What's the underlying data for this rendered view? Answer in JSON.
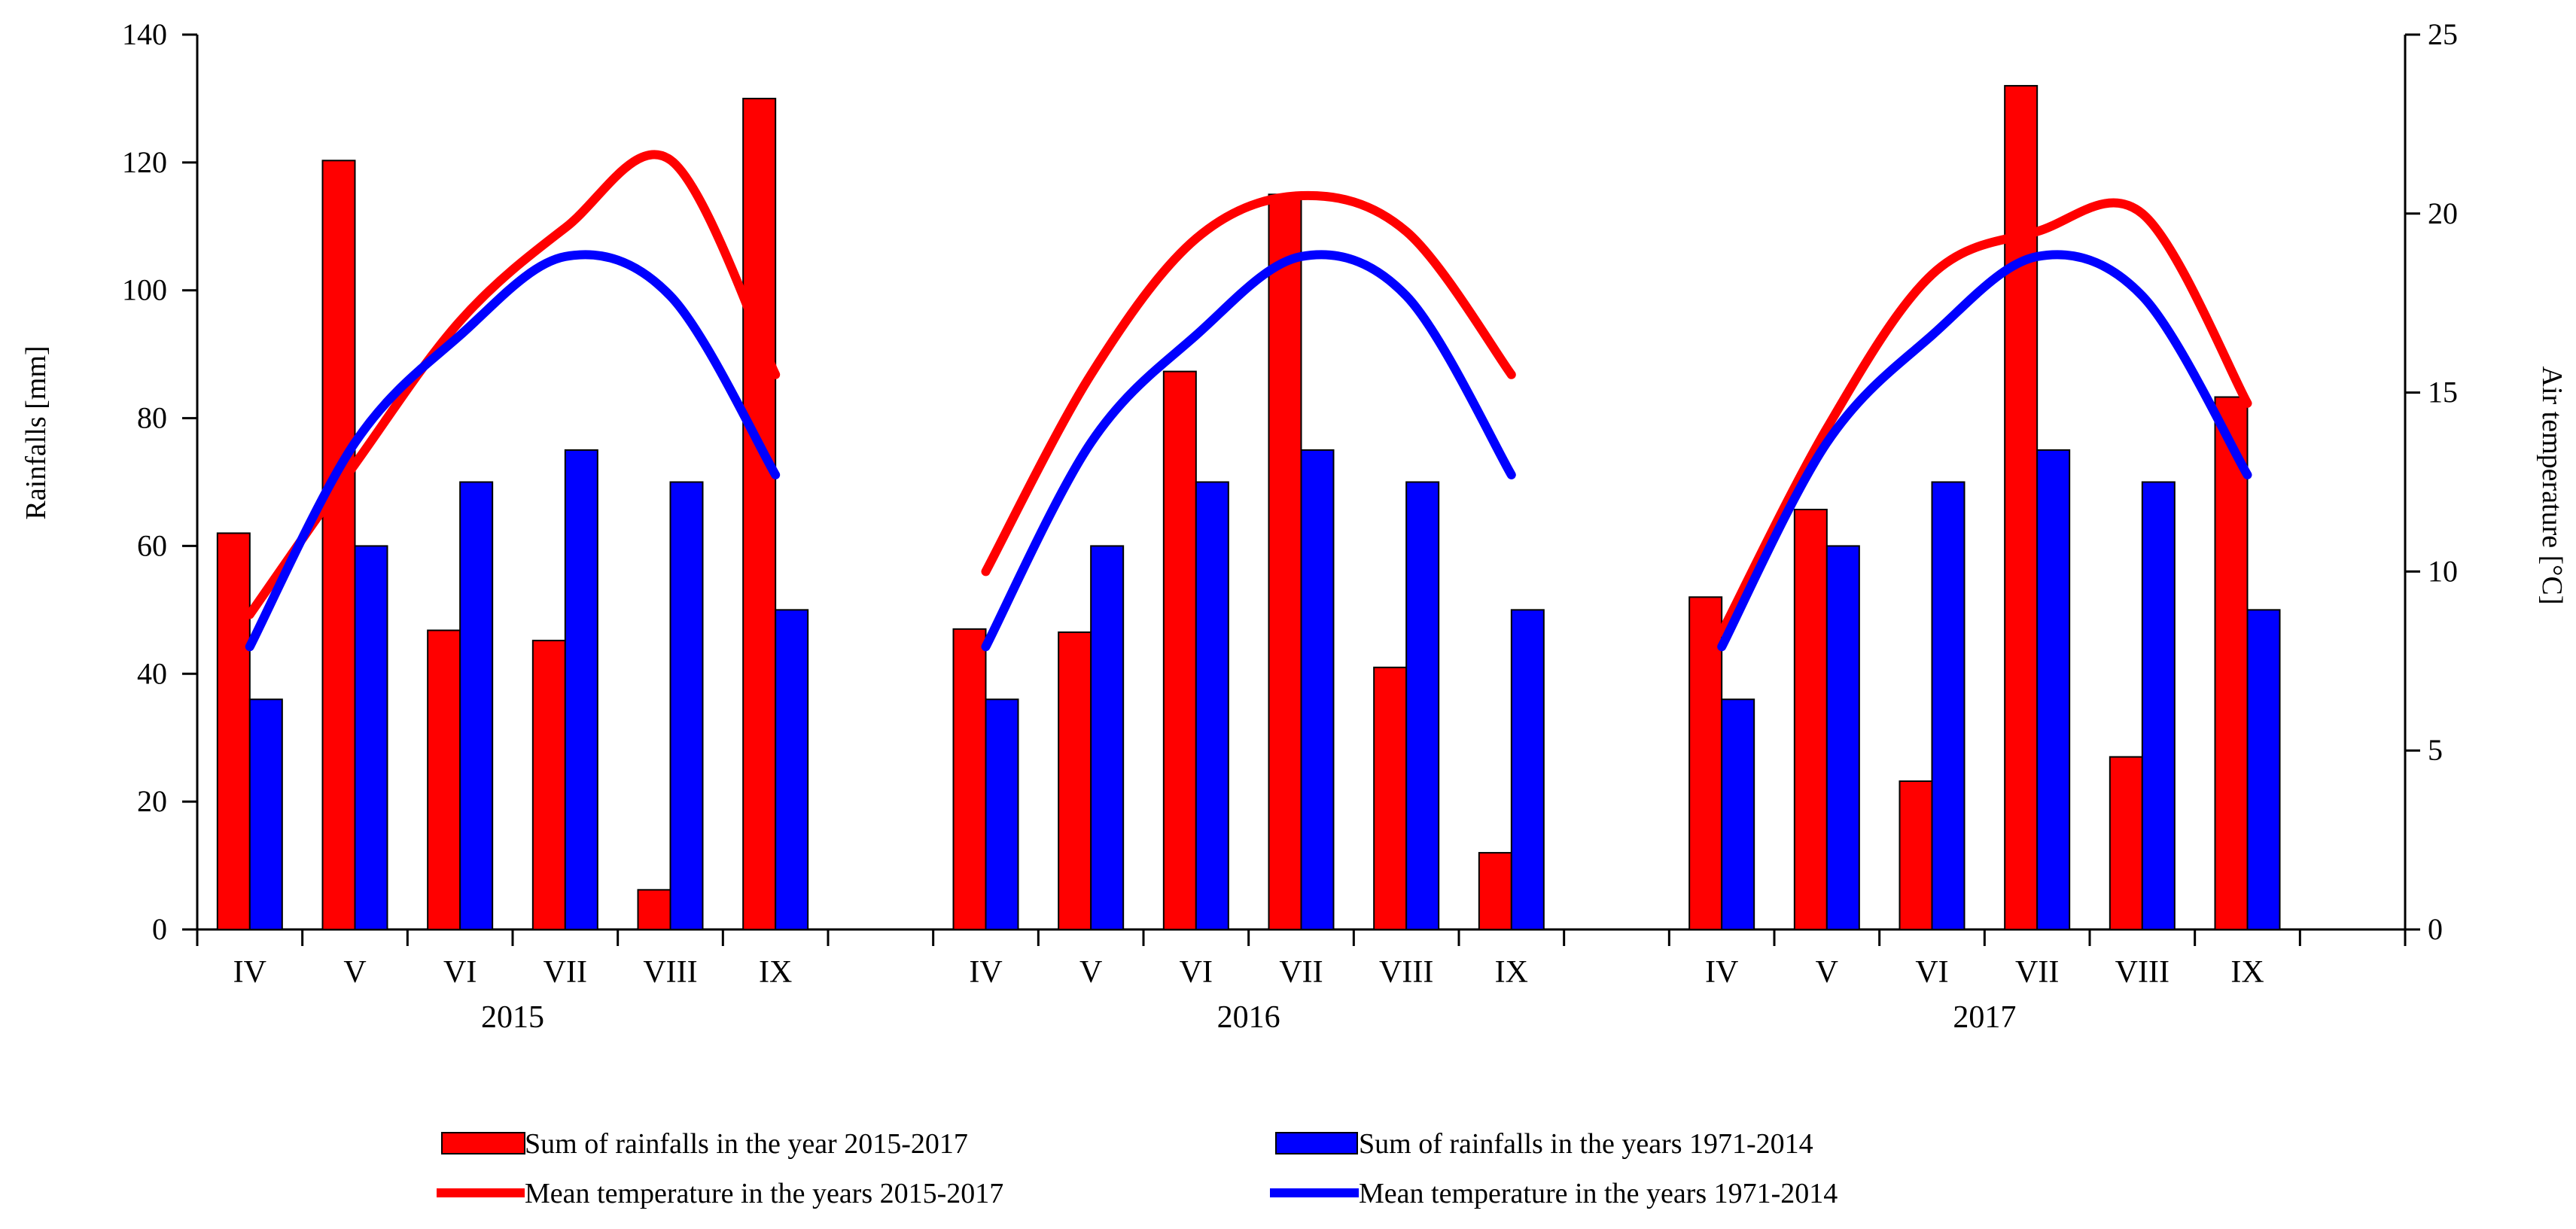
{
  "chart_data": {
    "type": "bar",
    "groups": [
      {
        "label": "2015",
        "months": [
          "IV",
          "V",
          "VI",
          "VII",
          "VIII",
          "IX"
        ],
        "rain_actual": [
          62,
          120.3,
          46.8,
          45.2,
          6.2,
          130
        ],
        "rain_longterm": [
          36,
          60,
          70,
          75,
          70,
          50
        ],
        "temp_actual": [
          8.8,
          13.0,
          17.0,
          19.6,
          21.5,
          15.5
        ],
        "temp_longterm": [
          7.9,
          13.6,
          16.6,
          18.8,
          17.7,
          12.7
        ]
      },
      {
        "label": "2016",
        "months": [
          "IV",
          "V",
          "VI",
          "VII",
          "VIII",
          "IX"
        ],
        "rain_actual": [
          47,
          46.5,
          87.3,
          115,
          41,
          12
        ],
        "rain_longterm": [
          36,
          60,
          70,
          75,
          70,
          50
        ],
        "temp_actual": [
          10.0,
          15.5,
          19.3,
          20.5,
          19.5,
          15.5
        ],
        "temp_longterm": [
          7.9,
          13.6,
          16.6,
          18.8,
          17.7,
          12.7
        ]
      },
      {
        "label": "2017",
        "months": [
          "IV",
          "V",
          "VI",
          "VII",
          "VIII",
          "IX"
        ],
        "rain_actual": [
          52,
          65.7,
          23.2,
          132,
          27,
          83.3
        ],
        "rain_longterm": [
          36,
          60,
          70,
          75,
          70,
          50
        ],
        "temp_actual": [
          8.3,
          14.0,
          18.3,
          19.5,
          20.0,
          14.7
        ],
        "temp_longterm": [
          7.9,
          13.6,
          16.6,
          18.8,
          17.7,
          12.7
        ]
      }
    ],
    "y_left": {
      "label": "Rainfalls [mm]",
      "min": 0,
      "max": 140,
      "ticks": [
        "0",
        "20",
        "40",
        "60",
        "80",
        "100",
        "120",
        "140"
      ]
    },
    "y_right": {
      "label": "Air temperature [°C]",
      "min": 0,
      "max": 25,
      "ticks": [
        "0",
        "5",
        "10",
        "15",
        "20",
        "25"
      ]
    },
    "legend": [
      {
        "label": "Sum of rainfalls in the year 2015-2017",
        "kind": "bar",
        "color": "#ff0000"
      },
      {
        "label": "Sum of rainfalls in the years 1971-2014",
        "kind": "bar",
        "color": "#0000ff"
      },
      {
        "label": "Mean temperature in the years 2015-2017",
        "kind": "line",
        "color": "#ff0000"
      },
      {
        "label": "Mean temperature in the years 1971-2014",
        "kind": "line",
        "color": "#0000ff"
      }
    ],
    "legend_position": "bottom",
    "colors": {
      "actual": "#ff0000",
      "longterm": "#0000ff",
      "bar_edge": "#000000"
    }
  }
}
